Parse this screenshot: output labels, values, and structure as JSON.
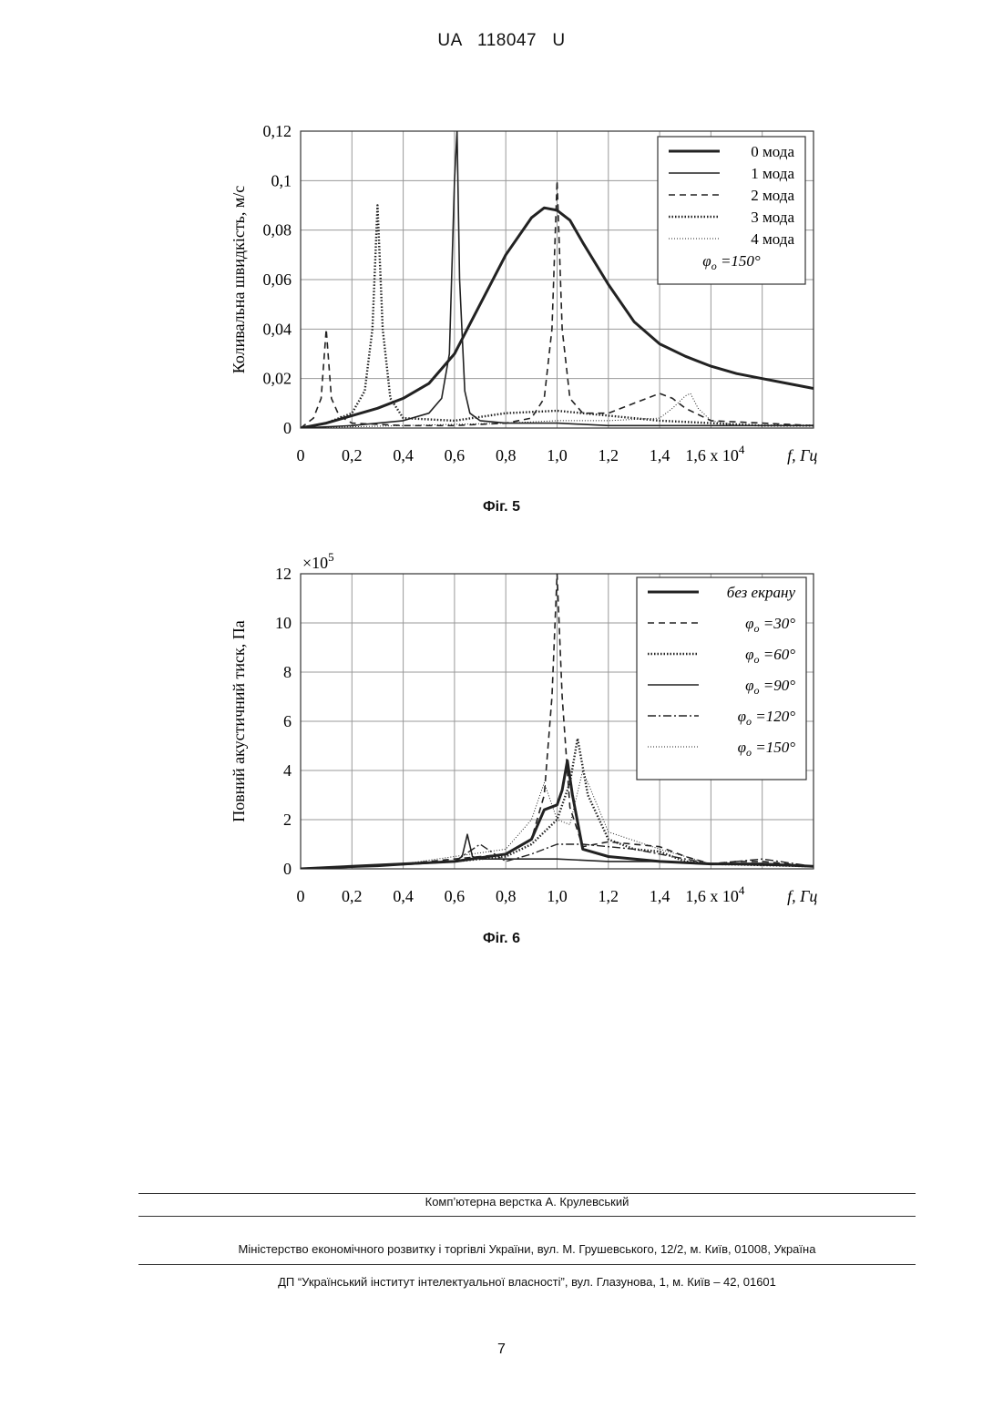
{
  "header": "UA   118047   U",
  "figures": [
    {
      "caption": "Фіг. 5",
      "ylabel": "Коливальна швидкість, м/с",
      "x_unit": "f, Гц",
      "x_multiplier": "1,6 x 10",
      "x_multiplier_exp": "4",
      "y_multiplier": "",
      "legend_note": "φ",
      "legend_note_sub": "o",
      "legend_note_value": "=150°"
    },
    {
      "caption": "Фіг. 6",
      "ylabel": "Повний акустичний тиск, Па",
      "x_unit": "f, Гц",
      "x_multiplier": "1,6 x 10",
      "x_multiplier_exp": "4",
      "y_multiplier": "×10",
      "y_multiplier_exp": "5"
    }
  ],
  "chart_data": [
    {
      "type": "line",
      "ylabel": "Коливальна швидкість, м/с",
      "xlabel": "f, Гц",
      "x_ticks": [
        "0",
        "0,2",
        "0,4",
        "0,6",
        "0,8",
        "1,0",
        "1,2",
        "1,4"
      ],
      "y_ticks": [
        "0",
        "0,02",
        "0,04",
        "0,06",
        "0,08",
        "0,1",
        "0,12"
      ],
      "xlim": [
        0,
        2.0
      ],
      "ylim": [
        0,
        0.12
      ],
      "grid": true,
      "legend_position": "top-right",
      "series": [
        {
          "name": "0 мода",
          "style": "thick-solid",
          "x": [
            0,
            0.1,
            0.2,
            0.3,
            0.4,
            0.5,
            0.6,
            0.7,
            0.8,
            0.9,
            0.95,
            1.0,
            1.05,
            1.1,
            1.2,
            1.3,
            1.4,
            1.5,
            1.6,
            1.7,
            1.8,
            1.9,
            2.0
          ],
          "y": [
            0,
            0.002,
            0.005,
            0.008,
            0.012,
            0.018,
            0.03,
            0.05,
            0.07,
            0.085,
            0.089,
            0.088,
            0.084,
            0.075,
            0.058,
            0.043,
            0.034,
            0.029,
            0.025,
            0.022,
            0.02,
            0.018,
            0.016
          ]
        },
        {
          "name": "1 мода",
          "style": "solid",
          "x": [
            0,
            0.2,
            0.4,
            0.5,
            0.55,
            0.58,
            0.6,
            0.61,
            0.62,
            0.64,
            0.66,
            0.7,
            0.8,
            1.0,
            1.2,
            1.4,
            1.6,
            1.8,
            2.0
          ],
          "y": [
            0,
            0.001,
            0.003,
            0.006,
            0.012,
            0.03,
            0.1,
            0.12,
            0.06,
            0.015,
            0.006,
            0.003,
            0.002,
            0.002,
            0.001,
            0.001,
            0.001,
            0.001,
            0.001
          ]
        },
        {
          "name": "2 мода",
          "style": "dashed",
          "x": [
            0,
            0.05,
            0.08,
            0.1,
            0.12,
            0.15,
            0.2,
            0.4,
            0.6,
            0.8,
            0.9,
            0.95,
            0.98,
            1.0,
            1.02,
            1.05,
            1.1,
            1.2,
            1.3,
            1.4,
            1.45,
            1.5,
            1.6,
            1.8,
            2.0
          ],
          "y": [
            0,
            0.004,
            0.012,
            0.04,
            0.012,
            0.005,
            0.002,
            0.001,
            0.001,
            0.002,
            0.004,
            0.012,
            0.04,
            0.1,
            0.04,
            0.012,
            0.006,
            0.006,
            0.01,
            0.014,
            0.012,
            0.008,
            0.003,
            0.002,
            0.001
          ]
        },
        {
          "name": "3 мода",
          "style": "dotted",
          "x": [
            0,
            0.1,
            0.2,
            0.25,
            0.28,
            0.3,
            0.32,
            0.35,
            0.4,
            0.6,
            0.8,
            1.0,
            1.2,
            1.4,
            1.6,
            1.8,
            2.0
          ],
          "y": [
            0,
            0.002,
            0.006,
            0.015,
            0.04,
            0.09,
            0.04,
            0.012,
            0.004,
            0.003,
            0.006,
            0.007,
            0.005,
            0.003,
            0.002,
            0.001,
            0.001
          ]
        },
        {
          "name": "4 мода",
          "style": "fine-dotted",
          "x": [
            0,
            0.4,
            0.8,
            1.0,
            1.2,
            1.4,
            1.45,
            1.5,
            1.52,
            1.55,
            1.6,
            1.7,
            2.0
          ],
          "y": [
            0,
            0.001,
            0.002,
            0.003,
            0.003,
            0.004,
            0.008,
            0.013,
            0.014,
            0.008,
            0.003,
            0.001,
            0.001
          ]
        }
      ]
    },
    {
      "type": "line",
      "ylabel": "Повний акустичний тиск, Па",
      "xlabel": "f, Гц",
      "x_ticks": [
        "0",
        "0,2",
        "0,4",
        "0,6",
        "0,8",
        "1,0",
        "1,2",
        "1,4"
      ],
      "y_ticks": [
        "0",
        "2",
        "4",
        "6",
        "8",
        "10",
        "12"
      ],
      "xlim": [
        0,
        2.0
      ],
      "ylim": [
        0,
        12
      ],
      "grid": true,
      "legend_position": "top-right",
      "series": [
        {
          "name": "без екрану",
          "style": "thick-solid",
          "x": [
            0,
            0.2,
            0.4,
            0.6,
            0.8,
            0.9,
            0.95,
            1.0,
            1.02,
            1.04,
            1.06,
            1.1,
            1.2,
            1.4,
            1.6,
            1.8,
            2.0
          ],
          "y": [
            0,
            0.1,
            0.2,
            0.3,
            0.6,
            1.2,
            2.4,
            2.6,
            3.2,
            4.4,
            3.0,
            0.8,
            0.5,
            0.3,
            0.2,
            0.2,
            0.1
          ]
        },
        {
          "name": "30°",
          "style": "dashed",
          "x": [
            0,
            0.4,
            0.6,
            0.8,
            0.9,
            0.95,
            0.98,
            1.0,
            1.02,
            1.05,
            1.1,
            1.2,
            1.3,
            1.4,
            1.5,
            1.6,
            1.7,
            1.8,
            2.0
          ],
          "y": [
            0,
            0.2,
            0.4,
            0.6,
            1.2,
            3.0,
            7.0,
            12.0,
            7.0,
            2.5,
            0.9,
            1.1,
            1.0,
            0.9,
            0.5,
            0.2,
            0.3,
            0.3,
            0.1
          ]
        },
        {
          "name": "60°",
          "style": "dotted",
          "x": [
            0,
            0.4,
            0.6,
            0.8,
            0.9,
            1.0,
            1.05,
            1.08,
            1.12,
            1.2,
            1.3,
            1.4,
            1.5,
            1.6,
            2.0
          ],
          "y": [
            0,
            0.2,
            0.3,
            0.5,
            1.0,
            2.0,
            3.5,
            5.3,
            3.0,
            1.2,
            0.8,
            0.7,
            0.3,
            0.2,
            0.1
          ]
        },
        {
          "name": "90°",
          "style": "solid",
          "x": [
            0,
            0.3,
            0.6,
            0.63,
            0.65,
            0.67,
            0.7,
            0.9,
            1.0,
            1.2,
            1.4,
            1.6,
            2.0
          ],
          "y": [
            0,
            0.1,
            0.3,
            0.5,
            1.4,
            0.5,
            0.4,
            0.4,
            0.4,
            0.3,
            0.3,
            0.2,
            0.1
          ]
        },
        {
          "name": "120°",
          "style": "dash-dot",
          "x": [
            0,
            0.4,
            0.6,
            0.7,
            0.8,
            0.9,
            1.0,
            1.1,
            1.2,
            1.3,
            1.4,
            1.5,
            1.6,
            1.8,
            2.0
          ],
          "y": [
            0,
            0.2,
            0.3,
            1.0,
            0.3,
            0.6,
            1.0,
            1.0,
            0.9,
            0.8,
            0.6,
            0.4,
            0.2,
            0.4,
            0.1
          ]
        },
        {
          "name": "150°",
          "style": "fine-dotted",
          "x": [
            0,
            0.4,
            0.8,
            0.9,
            0.95,
            1.0,
            1.05,
            1.1,
            1.2,
            1.4,
            1.5,
            1.6,
            2.0
          ],
          "y": [
            0,
            0.2,
            0.8,
            2.0,
            3.5,
            2.0,
            1.8,
            4.0,
            1.5,
            0.8,
            0.5,
            0.2,
            0.1
          ]
        }
      ]
    }
  ],
  "footer": {
    "line1": "Комп’ютерна верстка А. Крулевський",
    "line2": "Міністерство економічного розвитку і торгівлі України, вул. М. Грушевського, 12/2, м. Київ, 01008, Україна",
    "line3": "ДП “Український інститут інтелектуальної власності”, вул. Глазунова, 1, м. Київ – 42, 01601"
  },
  "page_number": "7"
}
